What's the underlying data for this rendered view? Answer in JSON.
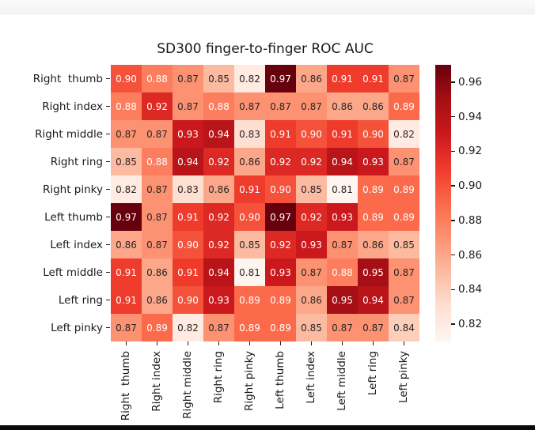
{
  "chart_data": {
    "type": "heatmap",
    "title": "SD300 finger-to-finger ROC AUC",
    "rows": [
      "Right  thumb",
      "Right index",
      "Right middle",
      "Right ring",
      "Right pinky",
      "Left thumb",
      "Left index",
      "Left middle",
      "Left ring",
      "Left pinky"
    ],
    "cols": [
      "Right  thumb",
      "Right index",
      "Right middle",
      "Right ring",
      "Right pinky",
      "Left thumb",
      "Left index",
      "Left middle",
      "Left ring",
      "Left pinky"
    ],
    "values": [
      [
        0.9,
        0.88,
        0.87,
        0.85,
        0.82,
        0.97,
        0.86,
        0.91,
        0.91,
        0.87
      ],
      [
        0.88,
        0.92,
        0.87,
        0.88,
        0.87,
        0.87,
        0.87,
        0.86,
        0.86,
        0.89
      ],
      [
        0.87,
        0.87,
        0.93,
        0.94,
        0.83,
        0.91,
        0.9,
        0.91,
        0.9,
        0.82
      ],
      [
        0.85,
        0.88,
        0.94,
        0.92,
        0.86,
        0.92,
        0.92,
        0.94,
        0.93,
        0.87
      ],
      [
        0.82,
        0.87,
        0.83,
        0.86,
        0.91,
        0.9,
        0.85,
        0.81,
        0.89,
        0.89
      ],
      [
        0.97,
        0.87,
        0.91,
        0.92,
        0.9,
        0.97,
        0.92,
        0.93,
        0.89,
        0.89
      ],
      [
        0.86,
        0.87,
        0.9,
        0.92,
        0.85,
        0.92,
        0.93,
        0.87,
        0.86,
        0.85
      ],
      [
        0.91,
        0.86,
        0.91,
        0.94,
        0.81,
        0.93,
        0.87,
        0.88,
        0.95,
        0.87
      ],
      [
        0.91,
        0.86,
        0.9,
        0.93,
        0.89,
        0.89,
        0.86,
        0.95,
        0.94,
        0.87
      ],
      [
        0.87,
        0.89,
        0.82,
        0.87,
        0.89,
        0.89,
        0.85,
        0.87,
        0.87,
        0.84
      ]
    ],
    "vmin": 0.81,
    "vmax": 0.97,
    "colormap": "Reds",
    "colormap_stops": [
      "#fff5f0",
      "#fee0d2",
      "#fcbba1",
      "#fc9272",
      "#fb6a4a",
      "#ef3b2c",
      "#cb181d",
      "#a50f15",
      "#67000d"
    ],
    "colorbar_ticks": [
      0.96,
      0.94,
      0.92,
      0.9,
      0.88,
      0.86,
      0.84,
      0.82
    ],
    "annotation_decimals": 2,
    "annot_color_dark": "#262626",
    "annot_color_light": "#ffffff",
    "legend_position": "right",
    "grid": false
  }
}
